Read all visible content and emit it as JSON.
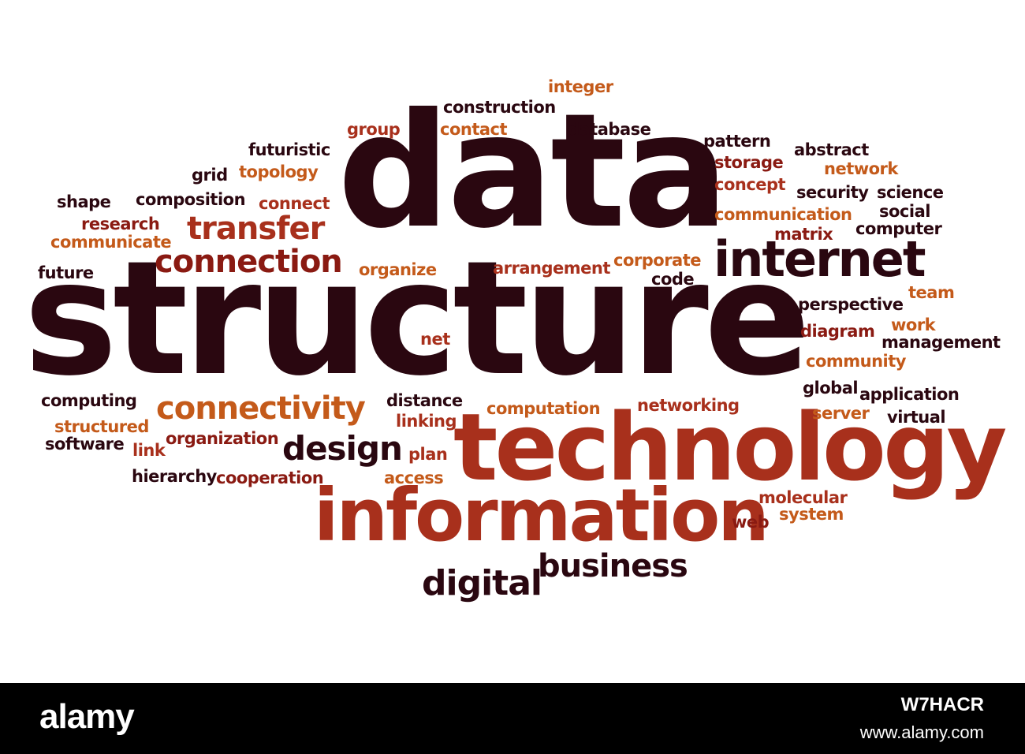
{
  "word_cloud": {
    "main_words": [
      "data",
      "structure",
      "technology",
      "information",
      "internet",
      "connection",
      "transfer",
      "connectivity",
      "design",
      "business",
      "digital"
    ],
    "words_top": [
      "integer",
      "construction",
      "group",
      "contact",
      "database",
      "futuristic",
      "grid",
      "topology",
      "shape",
      "composition",
      "connect",
      "research",
      "communicate",
      "future",
      "organize"
    ],
    "words_right": [
      "pattern",
      "abstract",
      "storage",
      "network",
      "concept",
      "security",
      "science",
      "social",
      "communication",
      "matrix",
      "computer",
      "corporate",
      "code",
      "arrangement",
      "team",
      "perspective",
      "work",
      "diagram",
      "management",
      "community",
      "global",
      "application",
      "server",
      "virtual",
      "molecular",
      "system",
      "web",
      "networking",
      "computation"
    ],
    "words_left": [
      "net",
      "computing",
      "distance",
      "linking",
      "structured",
      "software",
      "link",
      "organization",
      "plan",
      "hierarchy",
      "cooperation",
      "access"
    ]
  },
  "watermark": {
    "logo": "alamy",
    "image_id": "W7HACR",
    "site": "www.alamy.com"
  }
}
